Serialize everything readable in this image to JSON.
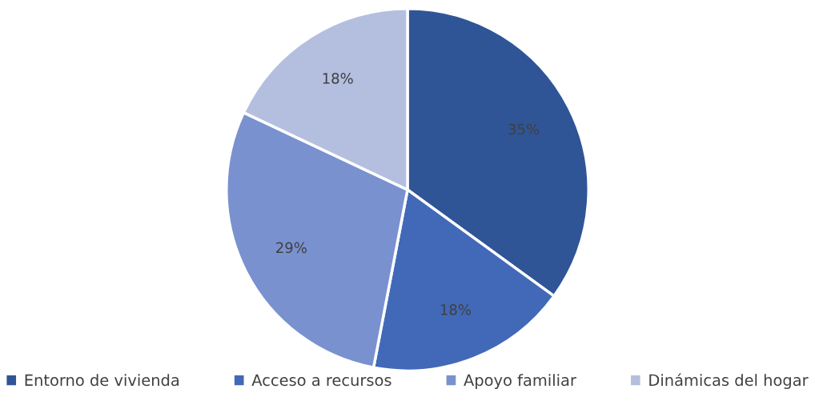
{
  "chart_data": {
    "type": "pie",
    "categories": [
      "Entorno de vivienda",
      "Acceso a recursos",
      "Apoyo familiar",
      "Dinámicas del hogar"
    ],
    "values": [
      35,
      18,
      29,
      18
    ],
    "colors": [
      "#2f5597",
      "#4169b8",
      "#7a91d0",
      "#b4bfe0"
    ],
    "value_labels": [
      "35%",
      "18%",
      "29%",
      "18%"
    ],
    "legend": "bottom"
  }
}
